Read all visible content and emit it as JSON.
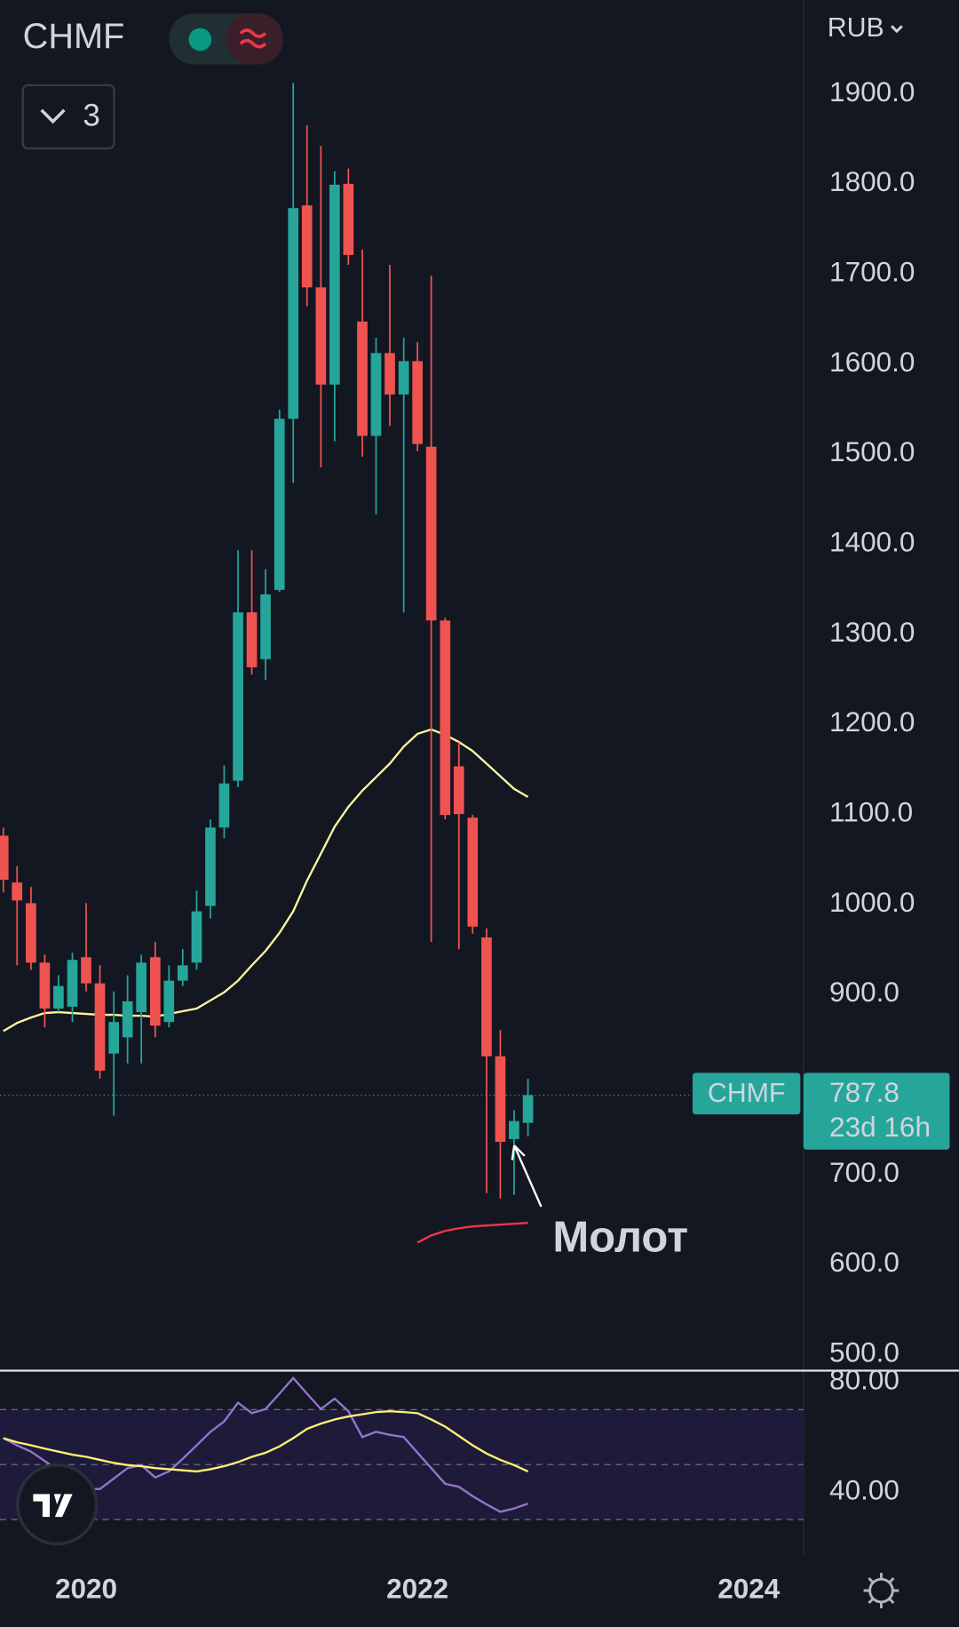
{
  "chart_data": {
    "type": "candlestick",
    "title": "CHMF",
    "currency": "RUB",
    "indicator_count": 3,
    "countdown": "23d 16h",
    "annotation": "Молот",
    "up_color": "#26a69a",
    "down_color": "#ef5350",
    "x": [
      2019.5,
      2019.583,
      2019.667,
      2019.75,
      2019.833,
      2019.917,
      2020,
      2020.083,
      2020.167,
      2020.25,
      2020.333,
      2020.417,
      2020.5,
      2020.583,
      2020.667,
      2020.75,
      2020.833,
      2020.917,
      2021,
      2021.083,
      2021.167,
      2021.25,
      2021.333,
      2021.417,
      2021.5,
      2021.583,
      2021.667,
      2021.75,
      2021.833,
      2021.917,
      2022,
      2022.083,
      2022.167,
      2022.25,
      2022.333,
      2022.417,
      2022.5,
      2022.583,
      2022.667
    ],
    "open": [
      1076,
      1024,
      1001,
      935,
      884,
      886,
      941,
      912,
      834,
      852,
      880,
      941,
      869,
      915,
      935,
      998,
      1085,
      1137,
      1324,
      1272,
      1349,
      1539,
      1776,
      1685,
      1577,
      1800,
      1647,
      1520,
      1612,
      1566,
      1603,
      1508,
      1315,
      1153,
      1096,
      963,
      831,
      739,
      757
    ],
    "high": [
      1085,
      1042,
      1019,
      944,
      921,
      946,
      1001,
      932,
      903,
      921,
      944,
      958,
      932,
      950,
      1015,
      1094,
      1154,
      1393,
      1393,
      1372,
      1549,
      1912,
      1865,
      1842,
      1814,
      1817,
      1727,
      1629,
      1710,
      1629,
      1624,
      1698,
      1318,
      1180,
      1099,
      973,
      860,
      771,
      806
    ],
    "low": [
      1013,
      932,
      927,
      863,
      880,
      869,
      903,
      806,
      765,
      823,
      823,
      852,
      863,
      909,
      927,
      984,
      1073,
      1130,
      1255,
      1249,
      1347,
      1468,
      1664,
      1485,
      1514,
      1710,
      1497,
      1433,
      1531,
      1324,
      1503,
      958,
      1094,
      950,
      967,
      679,
      673,
      677,
      742
    ],
    "close": [
      1027,
      1004,
      935,
      884,
      909,
      938,
      912,
      815,
      869,
      892,
      935,
      865,
      915,
      932,
      992,
      1085,
      1134,
      1324,
      1263,
      1344,
      1539,
      1773,
      1685,
      1577,
      1799,
      1721,
      1520,
      1612,
      1566,
      1603,
      1511,
      1315,
      1099,
      1100,
      975,
      831,
      736,
      759,
      787.8
    ],
    "overlays": [
      {
        "color": "#fff59d",
        "values": [
          859,
          868,
          874,
          879,
          880,
          879,
          878,
          877,
          877,
          876,
          876,
          875,
          878,
          881,
          884,
          893,
          902,
          915,
          932,
          948,
          968,
          992,
          1026,
          1056,
          1086,
          1108,
          1126,
          1141,
          1156,
          1175,
          1189,
          1194,
          1188,
          1180,
          1170,
          1156,
          1142,
          1128,
          1119
        ]
      },
      {
        "color": "#f23645",
        "values": [
          null,
          null,
          null,
          null,
          null,
          null,
          null,
          null,
          null,
          null,
          null,
          null,
          null,
          null,
          null,
          null,
          null,
          null,
          null,
          null,
          null,
          null,
          null,
          null,
          null,
          null,
          null,
          null,
          null,
          null,
          624,
          632,
          637,
          640,
          642,
          643,
          644,
          645,
          646
        ]
      }
    ],
    "xlim": [
      2019.48,
      2024.33
    ],
    "xticks": [
      {
        "value": 2020,
        "label": "2020"
      },
      {
        "value": 2022,
        "label": "2022"
      },
      {
        "value": 2024,
        "label": "2024"
      }
    ],
    "ylim": [
      483,
      2004
    ],
    "yticks": [
      {
        "value": 1900,
        "label": "1900.0"
      },
      {
        "value": 1800,
        "label": "1800.0"
      },
      {
        "value": 1700,
        "label": "1700.0"
      },
      {
        "value": 1600,
        "label": "1600.0"
      },
      {
        "value": 1500,
        "label": "1500.0"
      },
      {
        "value": 1400,
        "label": "1400.0"
      },
      {
        "value": 1300,
        "label": "1300.0"
      },
      {
        "value": 1200,
        "label": "1200.0"
      },
      {
        "value": 1100,
        "label": "1100.0"
      },
      {
        "value": 1000,
        "label": "1000.0"
      },
      {
        "value": 900,
        "label": "900.0"
      },
      {
        "value": 700,
        "label": "700.0"
      },
      {
        "value": 600,
        "label": "600.0"
      },
      {
        "value": 500,
        "label": "500.0"
      }
    ],
    "indicator": {
      "type": "line",
      "ylim": [
        16.6,
        83.8
      ],
      "yticks": [
        {
          "value": 80,
          "label": "80.00"
        },
        {
          "value": 40,
          "label": "40.00"
        }
      ],
      "levels": [
        70,
        50,
        30
      ],
      "band_color": "#1e1b3a",
      "series": [
        {
          "color": "#9575cd",
          "values": [
            59.6,
            57.0,
            54.7,
            51.3,
            47.9,
            44.5,
            41.1,
            41.1,
            44.9,
            48.7,
            49.8,
            45.3,
            47.5,
            52.1,
            57.0,
            61.9,
            65.7,
            72.5,
            68.7,
            70.2,
            75.8,
            81.5,
            75.8,
            70.2,
            74.0,
            69.4,
            60.0,
            61.9,
            60.8,
            60.0,
            54.3,
            48.7,
            43.0,
            41.9,
            38.5,
            35.5,
            32.8,
            34.0,
            35.8
          ]
        },
        {
          "color": "#fff176",
          "values": [
            59.6,
            58.1,
            57.0,
            55.8,
            54.7,
            53.6,
            52.8,
            51.7,
            50.6,
            49.8,
            49.4,
            48.7,
            48.3,
            47.9,
            47.5,
            48.3,
            49.4,
            50.9,
            52.8,
            54.3,
            56.6,
            59.6,
            63.0,
            64.9,
            66.4,
            67.5,
            68.3,
            69.1,
            69.4,
            69.1,
            68.7,
            66.4,
            63.8,
            60.4,
            57.0,
            54.0,
            51.7,
            49.8,
            47.5
          ]
        }
      ]
    }
  }
}
